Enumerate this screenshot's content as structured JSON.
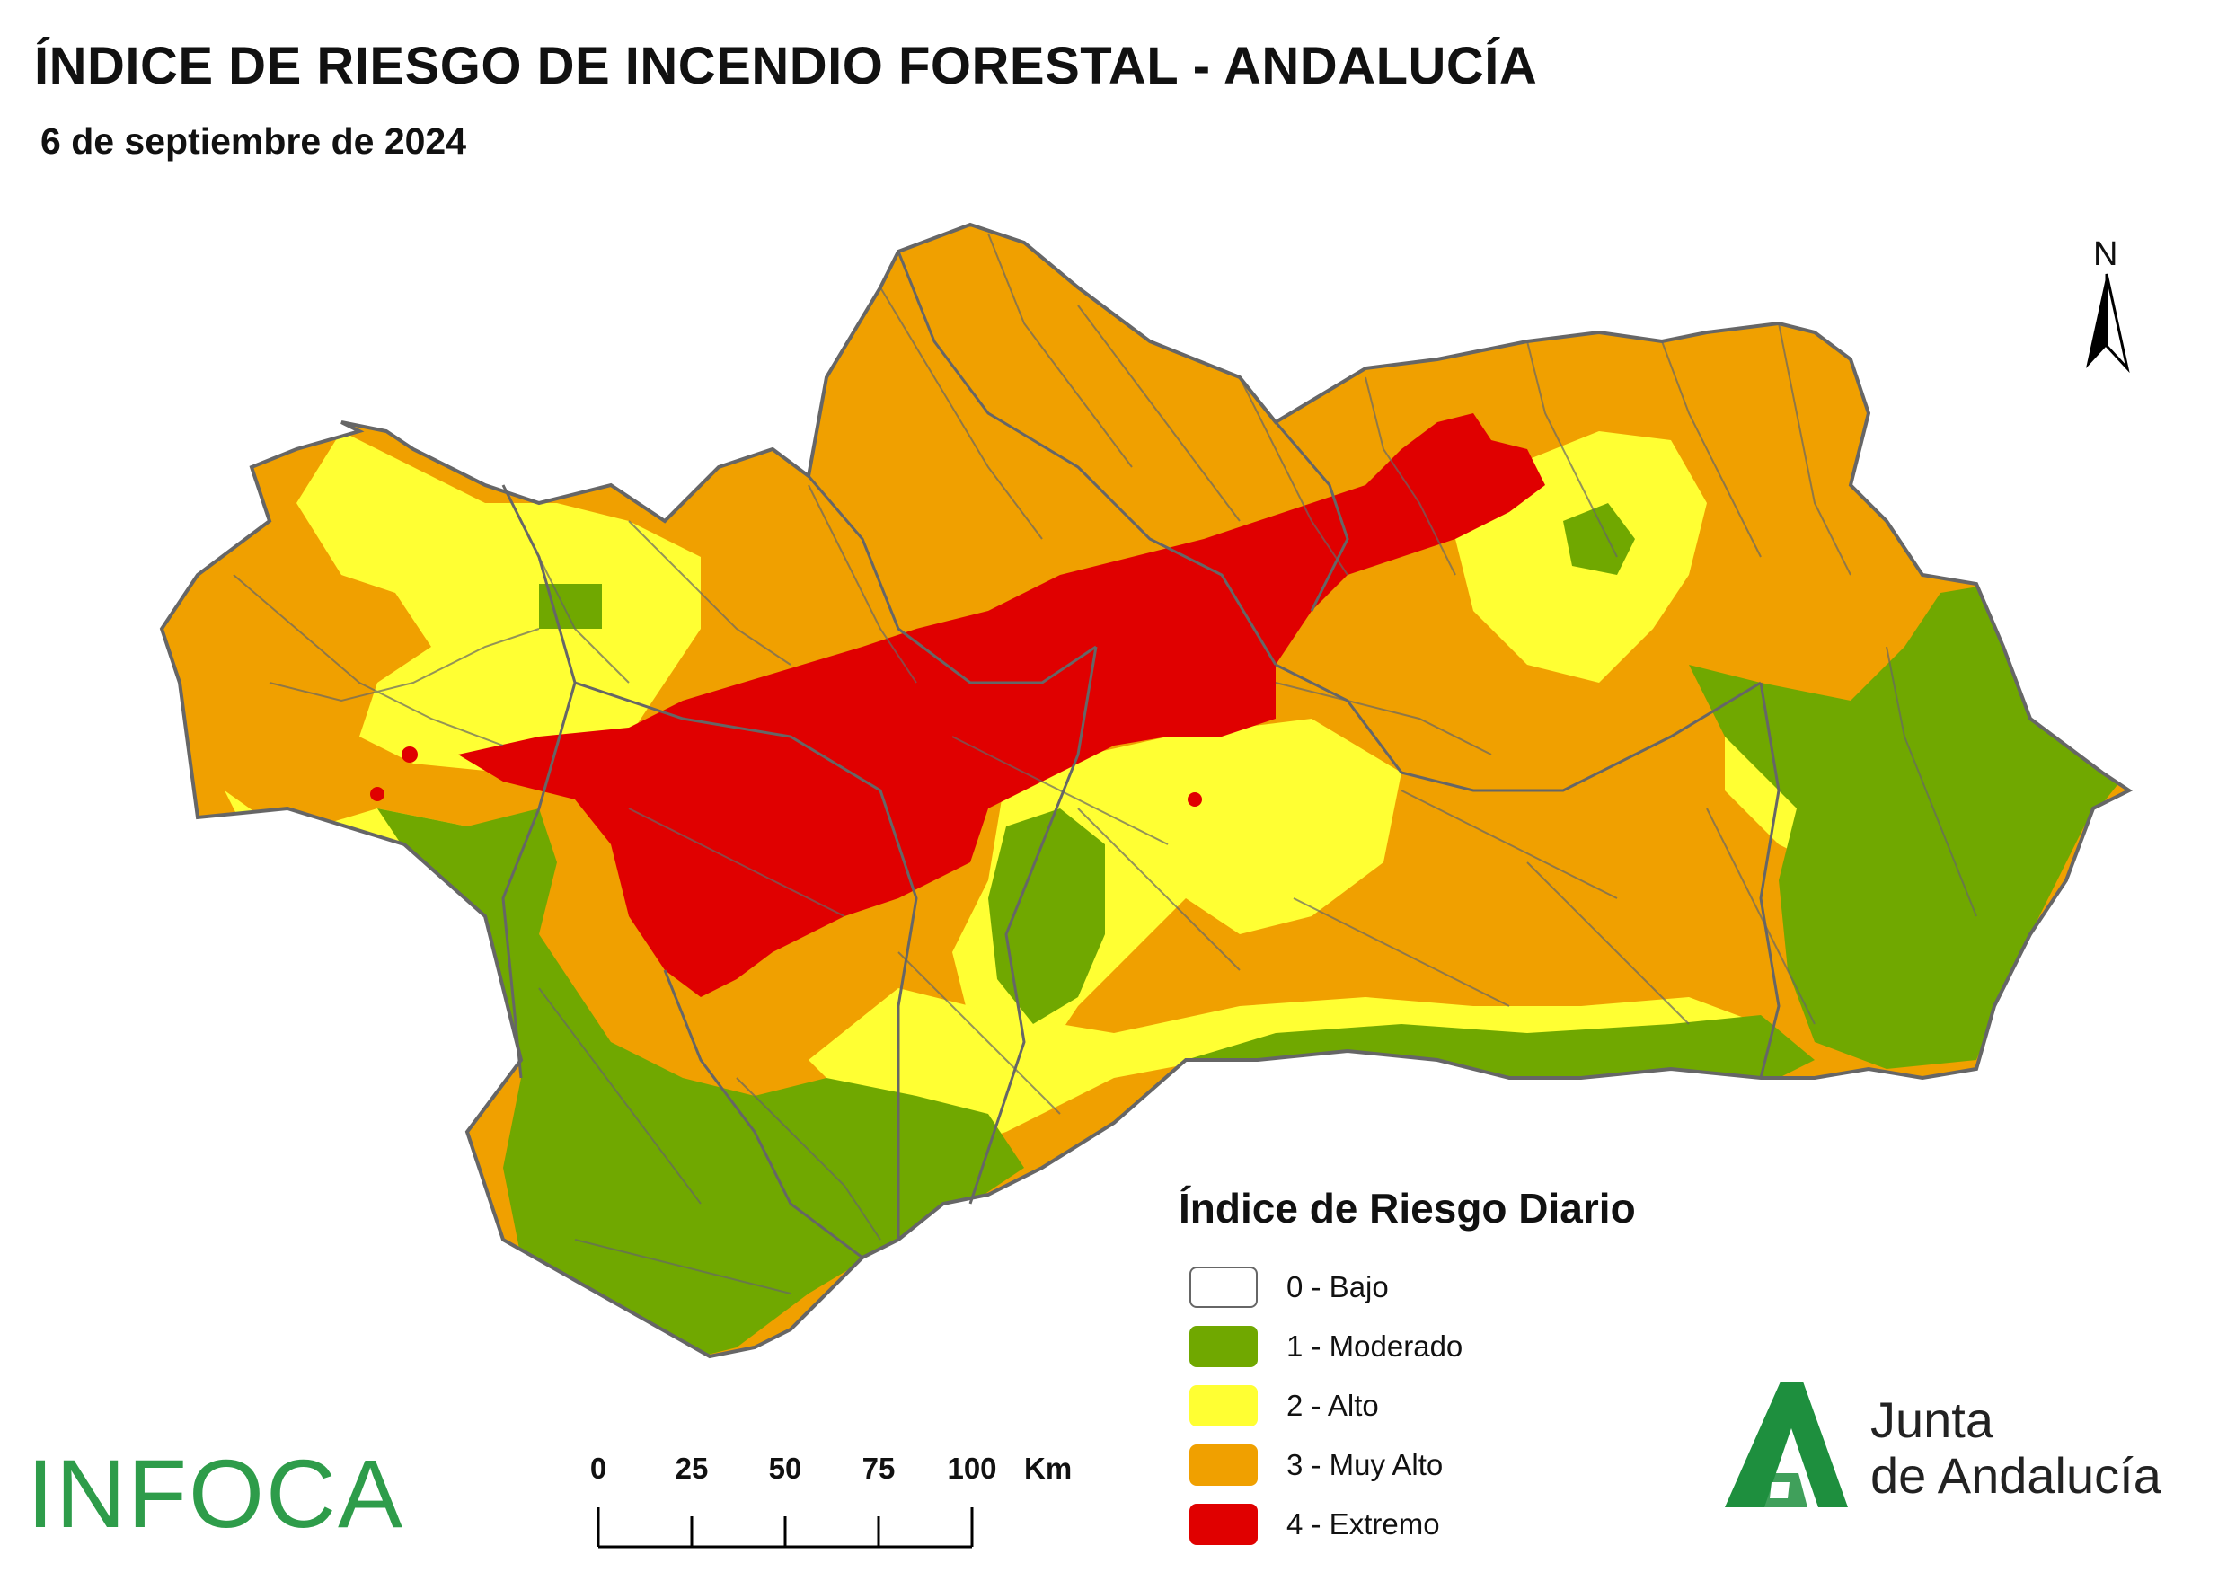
{
  "header": {
    "title": "ÍNDICE DE RIESGO DE INCENDIO FORESTAL - ANDALUCÍA",
    "date": "6 de septiembre de 2024"
  },
  "north_arrow": {
    "label": "N"
  },
  "legend": {
    "title": "Índice de Riesgo Diario",
    "items": [
      {
        "label": "0 - Bajo",
        "color": "#ffffff",
        "level": 0
      },
      {
        "label": "1 - Moderado",
        "color": "#70a800",
        "level": 1
      },
      {
        "label": "2 - Alto",
        "color": "#ffff33",
        "level": 2
      },
      {
        "label": "3 - Muy Alto",
        "color": "#f0a000",
        "level": 3
      },
      {
        "label": "4 - Extremo",
        "color": "#e00000",
        "level": 4
      }
    ]
  },
  "scale_bar": {
    "ticks": [
      "0",
      "25",
      "50",
      "75",
      "100"
    ],
    "unit": "Km"
  },
  "logos": {
    "left": "INFOCA",
    "right_line1": "Junta",
    "right_line2": "de Andalucía"
  },
  "colors": {
    "border": "#666666",
    "infoca_green": "#2e9c4a",
    "junta_green": "#1e8f3e"
  }
}
